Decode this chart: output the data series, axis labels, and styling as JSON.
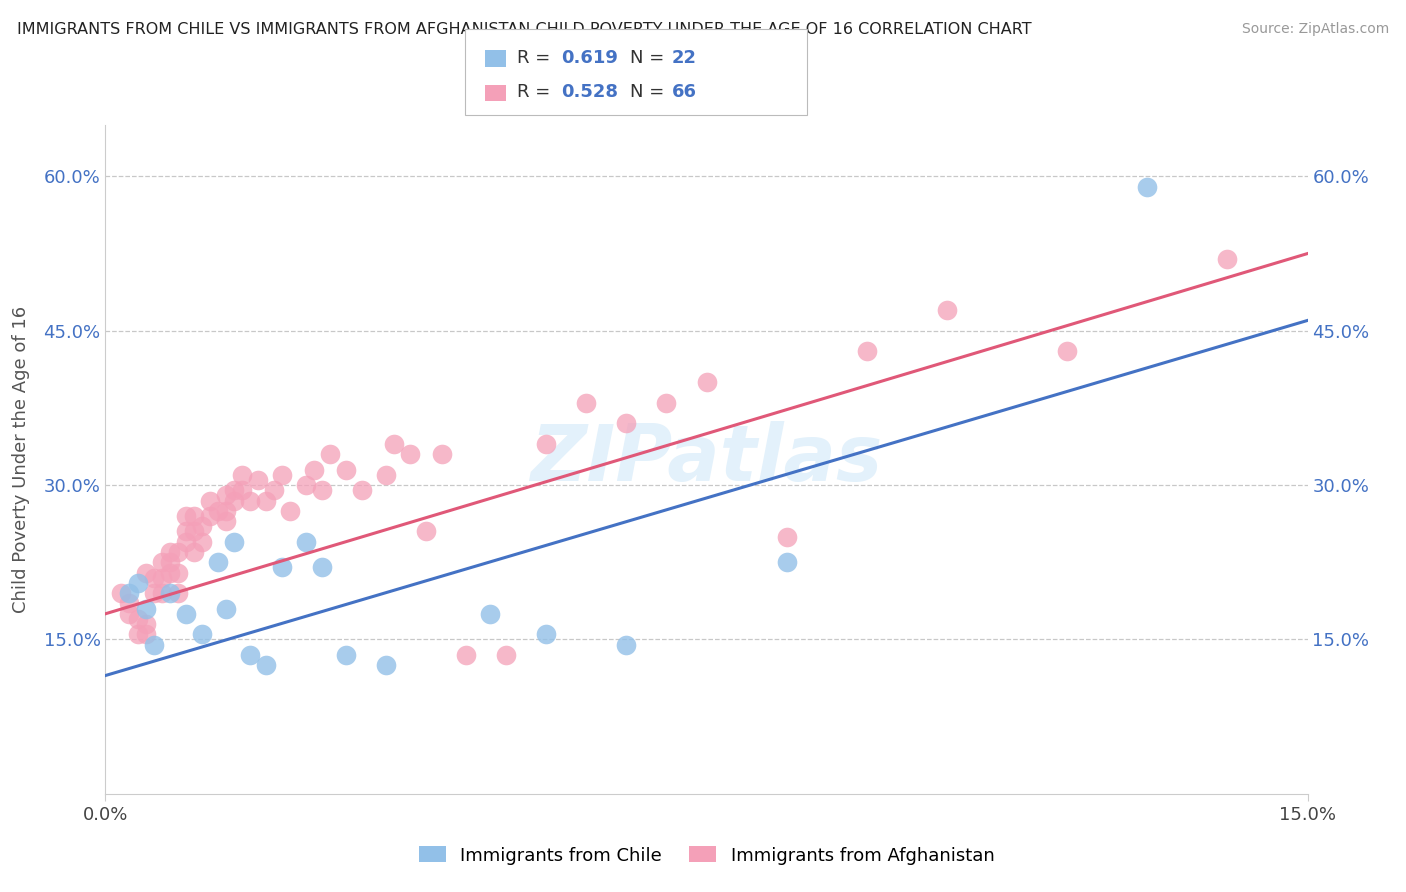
{
  "title": "IMMIGRANTS FROM CHILE VS IMMIGRANTS FROM AFGHANISTAN CHILD POVERTY UNDER THE AGE OF 16 CORRELATION CHART",
  "source": "Source: ZipAtlas.com",
  "ylabel": "Child Poverty Under the Age of 16",
  "xmin": 0.0,
  "xmax": 0.15,
  "ymin": 0.0,
  "ymax": 0.65,
  "yticks": [
    0.15,
    0.3,
    0.45,
    0.6
  ],
  "ytick_labels": [
    "15.0%",
    "30.0%",
    "45.0%",
    "60.0%"
  ],
  "xticks": [
    0.0,
    0.15
  ],
  "xtick_labels": [
    "0.0%",
    "15.0%"
  ],
  "chile_R": 0.619,
  "chile_N": 22,
  "afghanistan_R": 0.528,
  "afghanistan_N": 66,
  "chile_color": "#92c0e8",
  "afghanistan_color": "#f4a0b8",
  "chile_line_color": "#4472c4",
  "afghanistan_line_color": "#e05878",
  "watermark": "ZIPatlas",
  "bg_color": "#ffffff",
  "grid_color": "#c8c8c8",
  "chile_x": [
    0.003,
    0.004,
    0.005,
    0.006,
    0.008,
    0.01,
    0.012,
    0.014,
    0.015,
    0.016,
    0.018,
    0.02,
    0.022,
    0.025,
    0.027,
    0.03,
    0.035,
    0.048,
    0.055,
    0.065,
    0.085,
    0.13
  ],
  "chile_y": [
    0.195,
    0.205,
    0.18,
    0.145,
    0.195,
    0.175,
    0.155,
    0.225,
    0.18,
    0.245,
    0.135,
    0.125,
    0.22,
    0.245,
    0.22,
    0.135,
    0.125,
    0.175,
    0.155,
    0.145,
    0.225,
    0.59
  ],
  "afg_x": [
    0.002,
    0.003,
    0.003,
    0.004,
    0.004,
    0.005,
    0.005,
    0.005,
    0.006,
    0.006,
    0.007,
    0.007,
    0.007,
    0.008,
    0.008,
    0.008,
    0.009,
    0.009,
    0.009,
    0.01,
    0.01,
    0.01,
    0.011,
    0.011,
    0.011,
    0.012,
    0.012,
    0.013,
    0.013,
    0.014,
    0.015,
    0.015,
    0.015,
    0.016,
    0.016,
    0.017,
    0.017,
    0.018,
    0.019,
    0.02,
    0.021,
    0.022,
    0.023,
    0.025,
    0.026,
    0.027,
    0.028,
    0.03,
    0.032,
    0.035,
    0.036,
    0.038,
    0.04,
    0.042,
    0.045,
    0.05,
    0.055,
    0.06,
    0.065,
    0.07,
    0.075,
    0.085,
    0.095,
    0.105,
    0.12,
    0.14
  ],
  "afg_y": [
    0.195,
    0.175,
    0.185,
    0.155,
    0.17,
    0.155,
    0.165,
    0.215,
    0.195,
    0.21,
    0.21,
    0.195,
    0.225,
    0.215,
    0.225,
    0.235,
    0.215,
    0.195,
    0.235,
    0.245,
    0.255,
    0.27,
    0.235,
    0.255,
    0.27,
    0.245,
    0.26,
    0.27,
    0.285,
    0.275,
    0.265,
    0.275,
    0.29,
    0.285,
    0.295,
    0.31,
    0.295,
    0.285,
    0.305,
    0.285,
    0.295,
    0.31,
    0.275,
    0.3,
    0.315,
    0.295,
    0.33,
    0.315,
    0.295,
    0.31,
    0.34,
    0.33,
    0.255,
    0.33,
    0.135,
    0.135,
    0.34,
    0.38,
    0.36,
    0.38,
    0.4,
    0.25,
    0.43,
    0.47,
    0.43,
    0.52
  ]
}
